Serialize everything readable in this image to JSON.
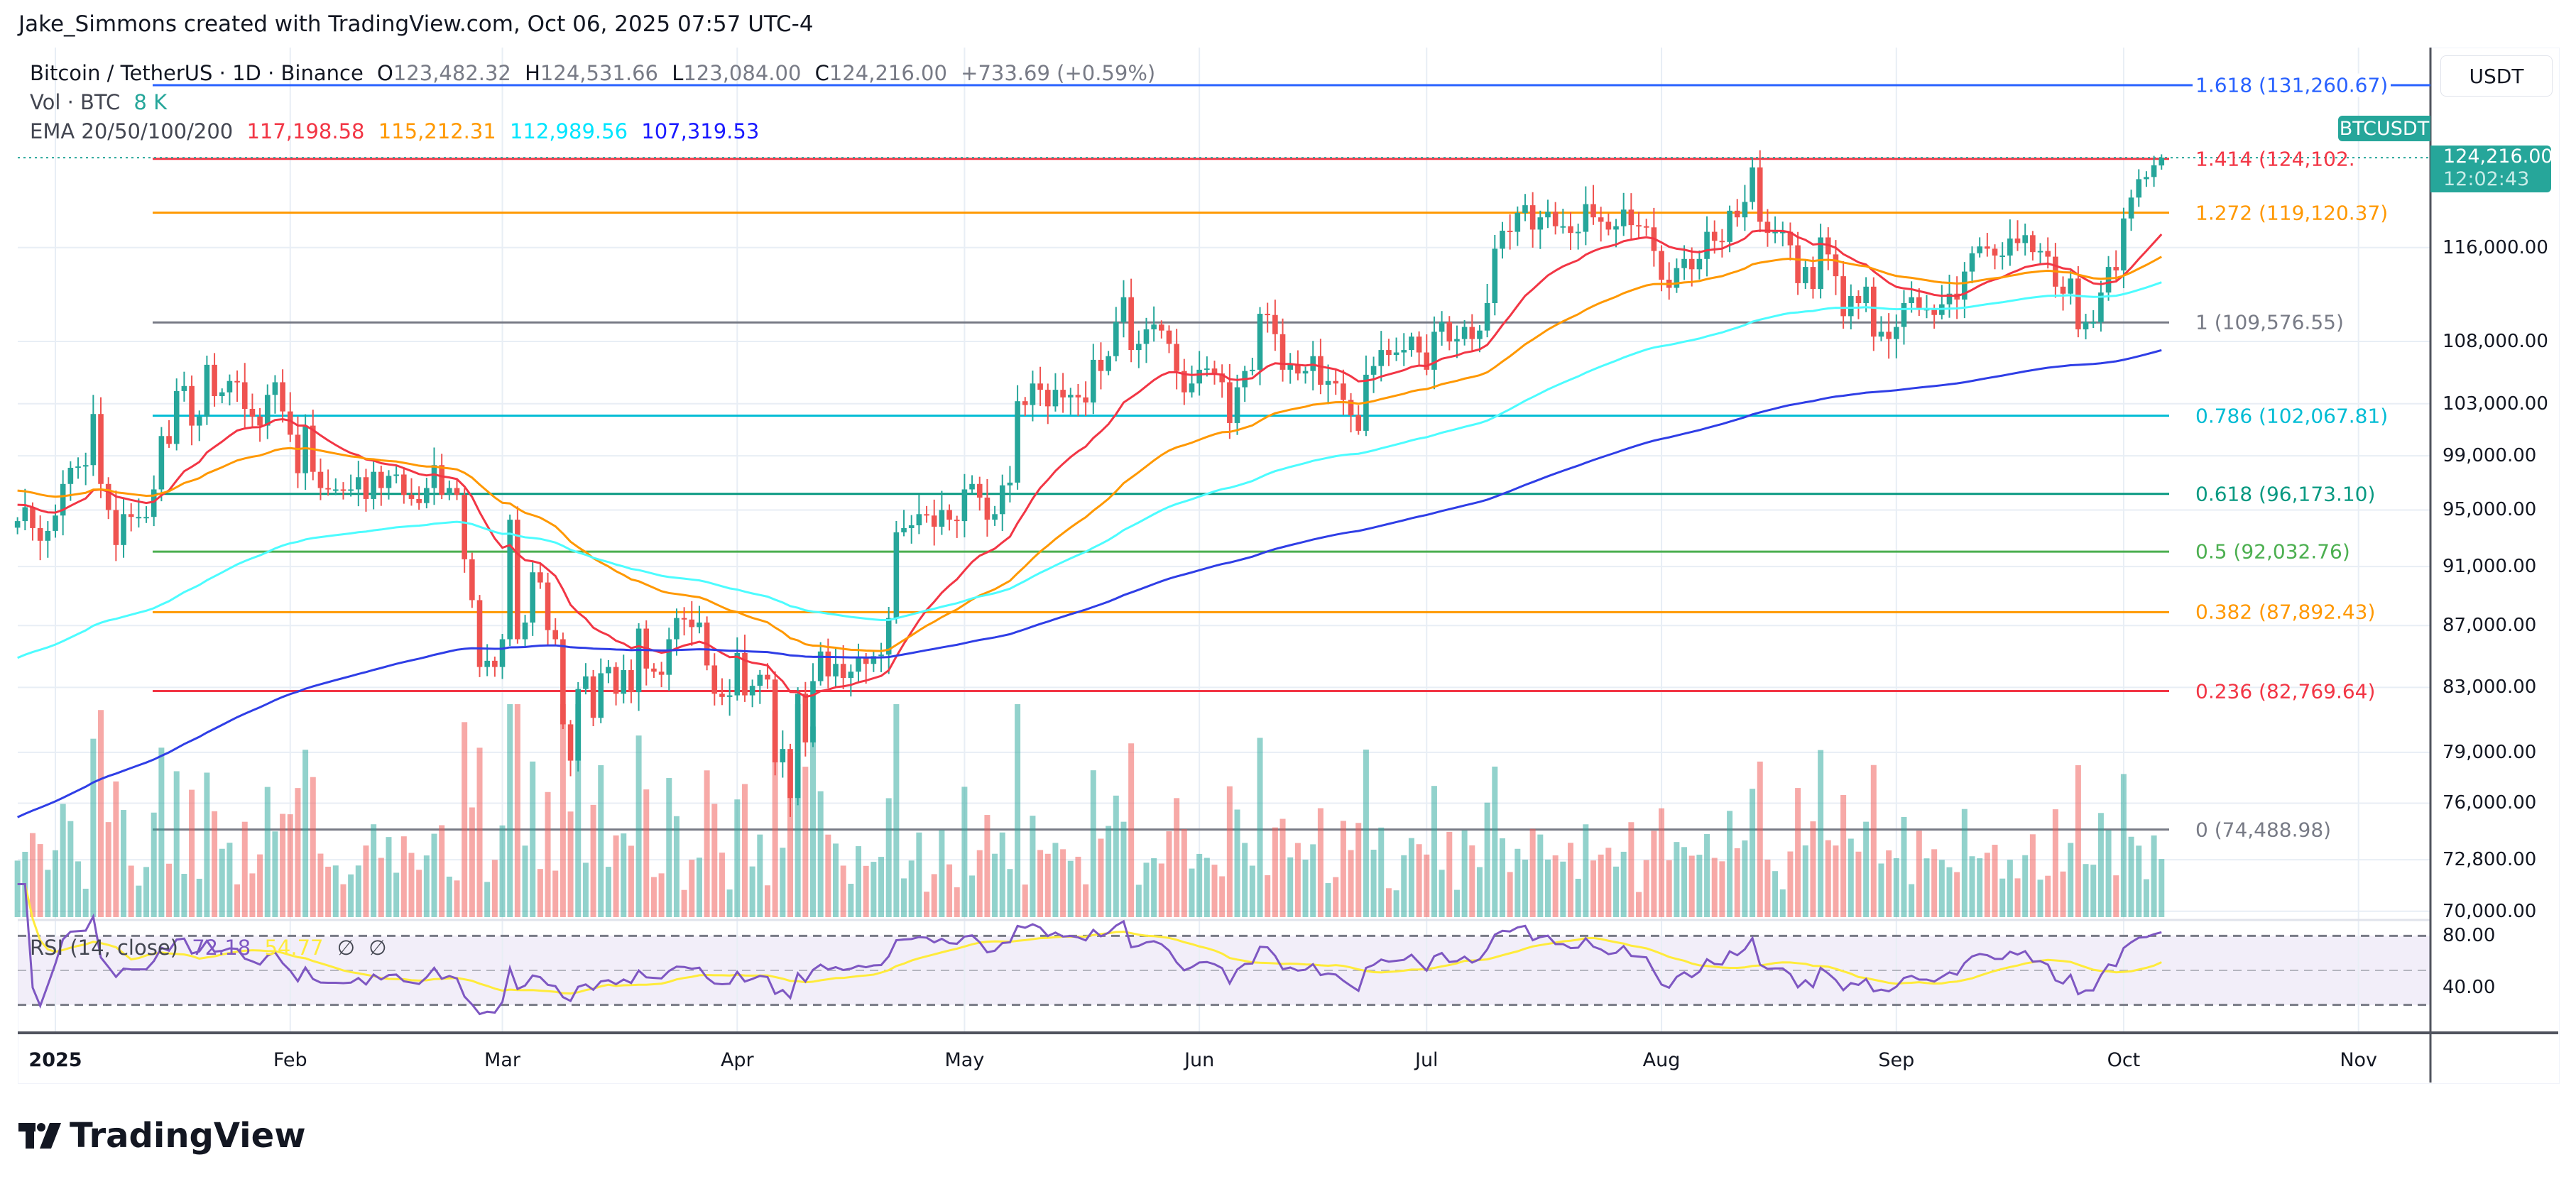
{
  "header": {
    "title": "Jake_Simmons created with TradingView.com, Oct 06, 2025 07:57 UTC-4"
  },
  "legend": {
    "symbol": "Bitcoin / TetherUS · 1D · Binance",
    "open_label": "O",
    "open": "123,482.32",
    "high_label": "H",
    "high": "124,531.66",
    "low_label": "L",
    "low": "123,084.00",
    "close_label": "C",
    "close": "124,216.00",
    "change": "+733.69 (+0.59%)",
    "volume_label": "Vol · BTC",
    "volume": "8 K",
    "ema_label": "EMA 20/50/100/200",
    "ema_values": [
      "117,198.58",
      "115,212.31",
      "112,989.56",
      "107,319.53"
    ]
  },
  "price_scale": {
    "currency_button": "USDT",
    "symbol_tag": "BTCUSDT",
    "last_price": "124,216.00",
    "countdown": "12:02:43"
  },
  "rsi": {
    "label": "RSI (14, close)",
    "value": "72.18",
    "ma_value": "54.77",
    "extra1": "∅",
    "extra2": "∅"
  },
  "logo": {
    "text": "TradingView"
  },
  "colors": {
    "up": "#26a69a",
    "down": "#ef5350",
    "ema20": "#f23645",
    "ema50": "#ff9800",
    "ema100": "#4dfcff",
    "ema200": "#2f3ee6",
    "rsi": "#7e57c2",
    "rsi_ma": "#ffeb3b"
  },
  "chart_data": {
    "type": "candlestick",
    "symbol": "BTCUSDT",
    "scale": "log",
    "grid": true,
    "start_date": "2024-12-27",
    "y_ticks": [
      116000,
      108000,
      103000,
      99000,
      95000,
      91000,
      87000,
      83000,
      79000,
      76000,
      72800,
      70000
    ],
    "y_tick_labels": [
      "116,000.00",
      "108,000.00",
      "103,000.00",
      "99,000.00",
      "95,000.00",
      "91,000.00",
      "87,000.00",
      "83,000.00",
      "79,000.00",
      "76,000.00",
      "72,800.00",
      "70,000.00"
    ],
    "rsi_ticks": [
      {
        "v": 80,
        "label": "80.00"
      },
      {
        "v": 40,
        "label": "40.00"
      }
    ],
    "x_tick_labels": [
      {
        "label": "2025",
        "date": "2025-01-01",
        "bold": true
      },
      {
        "label": "Feb",
        "date": "2025-02-01"
      },
      {
        "label": "Mar",
        "date": "2025-03-01"
      },
      {
        "label": "Apr",
        "date": "2025-04-01"
      },
      {
        "label": "May",
        "date": "2025-05-01"
      },
      {
        "label": "Jun",
        "date": "2025-06-01"
      },
      {
        "label": "Jul",
        "date": "2025-07-01"
      },
      {
        "label": "Aug",
        "date": "2025-08-01"
      },
      {
        "label": "Sep",
        "date": "2025-09-01"
      },
      {
        "label": "Oct",
        "date": "2025-10-01"
      },
      {
        "label": "Nov",
        "date": "2025-11-01"
      }
    ],
    "fib_levels": [
      {
        "ratio": "1.618",
        "price": 131260.67,
        "label": "1.618 (131,260.67)",
        "color": "#2962ff"
      },
      {
        "ratio": "1.414",
        "price": 124102,
        "label": "1.414 (124,102.",
        "color": "#f23645"
      },
      {
        "ratio": "1.272",
        "price": 119120.37,
        "label": "1.272 (119,120.37)",
        "color": "#ff9800"
      },
      {
        "ratio": "1",
        "price": 109576.55,
        "label": "1 (109,576.55)",
        "color": "#787b86"
      },
      {
        "ratio": "0.786",
        "price": 102067.81,
        "label": "0.786 (102,067.81)",
        "color": "#00bcd4"
      },
      {
        "ratio": "0.618",
        "price": 96173.1,
        "label": "0.618 (96,173.10)",
        "color": "#089981"
      },
      {
        "ratio": "0.5",
        "price": 92032.76,
        "label": "0.5 (92,032.76)",
        "color": "#4caf50"
      },
      {
        "ratio": "0.382",
        "price": 87892.43,
        "label": "0.382 (87,892.43)",
        "color": "#ff9800"
      },
      {
        "ratio": "0.236",
        "price": 82769.64,
        "label": "0.236 (82,769.64)",
        "color": "#f23645"
      },
      {
        "ratio": "0",
        "price": 74488.98,
        "label": "0 (74,488.98)",
        "color": "#787b86"
      }
    ],
    "last_candle": {
      "open": 123482.32,
      "high": 124531.66,
      "low": 123084.0,
      "close": 124216.0
    },
    "closes": [
      94200,
      95200,
      93700,
      92800,
      93500,
      94600,
      96900,
      98100,
      98200,
      98300,
      102200,
      96900,
      95000,
      92500,
      94700,
      94500,
      94500,
      94500,
      96500,
      100500,
      99900,
      104000,
      104400,
      101300,
      102000,
      106100,
      103600,
      103900,
      104800,
      104700,
      102600,
      102000,
      101300,
      103700,
      104700,
      102400,
      100600,
      97700,
      101300,
      97800,
      96600,
      96500,
      96500,
      96400,
      96500,
      97400,
      95800,
      97800,
      96600,
      97500,
      97600,
      96100,
      95800,
      95500,
      96600,
      98300,
      96100,
      96600,
      96100,
      91500,
      88700,
      84300,
      84700,
      84300,
      86100,
      94300,
      86100,
      87200,
      90600,
      89900,
      86700,
      86100,
      80700,
      78500,
      82900,
      83700,
      81100,
      83900,
      84300,
      82600,
      84100,
      82700,
      86800,
      84200,
      84000,
      83800,
      86100,
      87500,
      87400,
      86900,
      87200,
      84400,
      82600,
      82400,
      82500,
      85200,
      82500,
      83100,
      83800,
      83500,
      78400,
      79200,
      76300,
      82600,
      79600,
      83400,
      85300,
      83700,
      84500,
      83600,
      84000,
      84900,
      84500,
      85000,
      85100,
      87500,
      93400,
      93700,
      93900,
      94700,
      94600,
      93800,
      95000,
      94300,
      94200,
      96500,
      96900,
      95900,
      94300,
      94700,
      96800,
      97000,
      103200,
      102900,
      104600,
      104100,
      102800,
      104100,
      103500,
      103700,
      103500,
      103100,
      106500,
      105600,
      106800,
      109600,
      111700,
      107300,
      107800,
      109000,
      109400,
      108900,
      107800,
      105600,
      103900,
      104600,
      105700,
      105800,
      105400,
      104700,
      101500,
      104300,
      105600,
      105700,
      110300,
      110200,
      108600,
      105700,
      106100,
      105400,
      105600,
      106800,
      104500,
      104800,
      104600,
      103300,
      102100,
      100900,
      105300,
      106000,
      107300,
      106900,
      107100,
      107300,
      108400,
      107100,
      105700,
      108800,
      109600,
      108000,
      108200,
      109200,
      108200,
      108900,
      111200,
      115900,
      117500,
      117400,
      119100,
      119800,
      117600,
      118700,
      119200,
      117900,
      117900,
      117300,
      117400,
      119900,
      118700,
      118300,
      117600,
      117900,
      119400,
      118000,
      117900,
      117800,
      115700,
      113200,
      112500,
      114200,
      115000,
      114100,
      115000,
      117400,
      116600,
      116500,
      119300,
      118700,
      120100,
      123300,
      118300,
      117300,
      117400,
      117400,
      116200,
      112900,
      114300,
      112400,
      116900,
      115400,
      113500,
      110100,
      111800,
      111200,
      112600,
      108400,
      108800,
      108200,
      109200,
      111200,
      111700,
      110700,
      110700,
      110200,
      111100,
      112000,
      111500,
      113900,
      115500,
      116100,
      115900,
      115300,
      115300,
      116800,
      116400,
      117100,
      115600,
      115700,
      115200,
      112600,
      112000,
      113300,
      109000,
      109600,
      109600,
      112100,
      114300,
      114000,
      118600,
      120500,
      122200,
      122400,
      123500,
      124216
    ]
  }
}
